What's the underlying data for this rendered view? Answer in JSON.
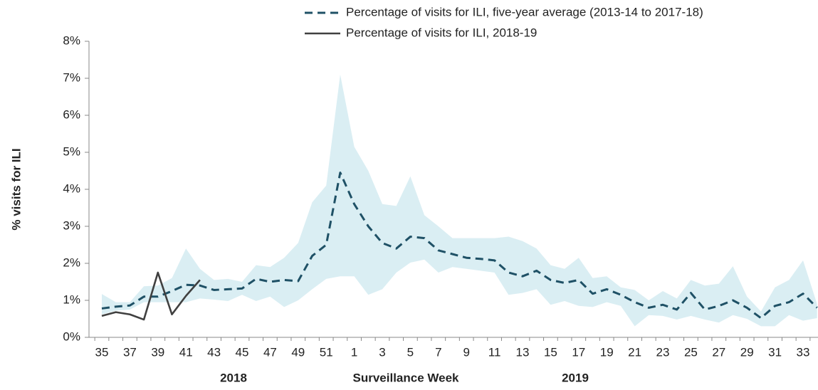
{
  "chart_data": {
    "type": "line",
    "x_label": "Surveillance Week",
    "y_label": "% visits for ILI",
    "annotations": [
      "2018",
      "2019"
    ],
    "categories": [
      "35",
      null,
      "37",
      null,
      "39",
      null,
      "41",
      null,
      "43",
      null,
      "45",
      null,
      "47",
      null,
      "49",
      null,
      "51",
      null,
      "1",
      null,
      "3",
      null,
      "5",
      null,
      "7",
      null,
      "9",
      null,
      "11",
      null,
      "13",
      null,
      "15",
      null,
      "17",
      null,
      "19",
      null,
      "21",
      null,
      "23",
      null,
      "25",
      null,
      "27",
      null,
      "29",
      null,
      "31",
      null,
      "33",
      null
    ],
    "series": [
      {
        "name": "Percentage of visits for ILI, five-year average (2013-14 to 2017-18)",
        "color": "#1f5166",
        "dashed": true,
        "values": [
          0.78,
          0.83,
          0.86,
          1.1,
          1.1,
          1.25,
          1.42,
          1.4,
          1.28,
          1.3,
          1.32,
          1.58,
          1.5,
          1.55,
          1.52,
          2.2,
          2.5,
          4.45,
          3.6,
          3.0,
          2.55,
          2.4,
          2.72,
          2.68,
          2.35,
          2.25,
          2.15,
          2.12,
          2.08,
          1.75,
          1.65,
          1.8,
          1.55,
          1.47,
          1.55,
          1.18,
          1.3,
          1.15,
          0.95,
          0.8,
          0.88,
          0.75,
          1.2,
          0.75,
          0.85,
          1.0,
          0.8,
          0.52,
          0.85,
          0.95,
          1.18,
          0.8
        ]
      },
      {
        "name": "Percentage of visits for ILI, 2018-19",
        "color": "#404040",
        "dashed": false,
        "values": [
          0.58,
          0.68,
          0.62,
          0.48,
          1.75,
          0.62,
          1.12,
          1.55,
          null,
          null,
          null,
          null,
          null,
          null,
          null,
          null,
          null,
          null,
          null,
          null,
          null,
          null,
          null,
          null,
          null,
          null,
          null,
          null,
          null,
          null,
          null,
          null,
          null,
          null,
          null,
          null,
          null,
          null,
          null,
          null,
          null,
          null,
          null,
          null,
          null,
          null,
          null,
          null,
          null,
          null,
          null,
          null
        ]
      }
    ],
    "band": {
      "color": "#daeef3",
      "upper": [
        1.17,
        0.95,
        0.95,
        1.38,
        1.4,
        1.6,
        2.4,
        1.85,
        1.55,
        1.58,
        1.5,
        1.95,
        1.9,
        2.15,
        2.55,
        3.65,
        4.1,
        7.1,
        5.15,
        4.5,
        3.6,
        3.55,
        4.35,
        3.3,
        3.0,
        2.68,
        2.68,
        2.68,
        2.68,
        2.72,
        2.6,
        2.4,
        1.95,
        1.85,
        2.15,
        1.6,
        1.65,
        1.35,
        1.28,
        1.0,
        1.25,
        1.05,
        1.55,
        1.4,
        1.45,
        1.92,
        1.1,
        0.7,
        1.35,
        1.55,
        2.08,
        0.9
      ],
      "lower": [
        0.62,
        0.72,
        0.75,
        0.95,
        0.95,
        0.95,
        0.95,
        1.05,
        1.02,
        0.98,
        1.15,
        0.98,
        1.1,
        0.82,
        1.0,
        1.3,
        1.58,
        1.65,
        1.65,
        1.15,
        1.3,
        1.75,
        2.02,
        2.1,
        1.75,
        1.9,
        1.85,
        1.8,
        1.75,
        1.15,
        1.2,
        1.3,
        0.88,
        0.98,
        0.85,
        0.82,
        0.95,
        0.85,
        0.3,
        0.6,
        0.58,
        0.48,
        0.58,
        0.48,
        0.4,
        0.6,
        0.5,
        0.3,
        0.3,
        0.6,
        0.45,
        0.52
      ]
    },
    "ylim": [
      0,
      8
    ],
    "yticks": [
      {
        "value": 0,
        "label": "0%"
      },
      {
        "value": 1,
        "label": "1%"
      },
      {
        "value": 2,
        "label": "2%"
      },
      {
        "value": 3,
        "label": "3%"
      },
      {
        "value": 4,
        "label": "4%"
      },
      {
        "value": 5,
        "label": "5%"
      },
      {
        "value": 6,
        "label": "6%"
      },
      {
        "value": 7,
        "label": "7%"
      },
      {
        "value": 8,
        "label": "8%"
      }
    ],
    "grid": false,
    "legend": "top"
  }
}
